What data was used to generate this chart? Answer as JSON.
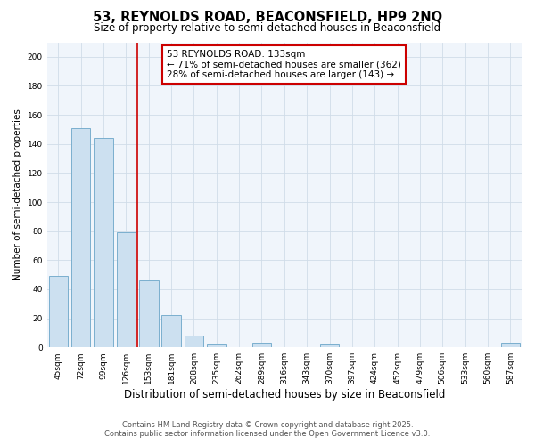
{
  "title": "53, REYNOLDS ROAD, BEACONSFIELD, HP9 2NQ",
  "subtitle": "Size of property relative to semi-detached houses in Beaconsfield",
  "xlabel": "Distribution of semi-detached houses by size in Beaconsfield",
  "ylabel": "Number of semi-detached properties",
  "categories": [
    "45sqm",
    "72sqm",
    "99sqm",
    "126sqm",
    "153sqm",
    "181sqm",
    "208sqm",
    "235sqm",
    "262sqm",
    "289sqm",
    "316sqm",
    "343sqm",
    "370sqm",
    "397sqm",
    "424sqm",
    "452sqm",
    "479sqm",
    "506sqm",
    "533sqm",
    "560sqm",
    "587sqm"
  ],
  "values": [
    49,
    151,
    144,
    79,
    46,
    22,
    8,
    2,
    0,
    3,
    0,
    0,
    2,
    0,
    0,
    0,
    0,
    0,
    0,
    0,
    3
  ],
  "bar_color": "#cce0f0",
  "bar_edge_color": "#7aafce",
  "grid_color": "#d0dce8",
  "background_color": "#ffffff",
  "plot_bg_color": "#f0f5fb",
  "red_line_x": 3.5,
  "annotation_title": "53 REYNOLDS ROAD: 133sqm",
  "annotation_line1": "← 71% of semi-detached houses are smaller (362)",
  "annotation_line2": "28% of semi-detached houses are larger (143) →",
  "annotation_box_color": "#ffffff",
  "annotation_box_edge": "#cc0000",
  "red_line_color": "#cc0000",
  "ylim": [
    0,
    210
  ],
  "yticks": [
    0,
    20,
    40,
    60,
    80,
    100,
    120,
    140,
    160,
    180,
    200
  ],
  "footer_line1": "Contains HM Land Registry data © Crown copyright and database right 2025.",
  "footer_line2": "Contains public sector information licensed under the Open Government Licence v3.0.",
  "title_fontsize": 10.5,
  "subtitle_fontsize": 8.5,
  "xlabel_fontsize": 8.5,
  "ylabel_fontsize": 7.5,
  "tick_fontsize": 6.5,
  "annotation_fontsize": 7.5,
  "footer_fontsize": 6.0
}
